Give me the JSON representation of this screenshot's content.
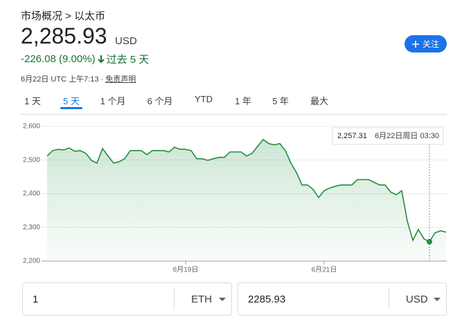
{
  "header": {
    "breadcrumb": "市场概况 > 以太币",
    "price": "2,285.93",
    "currency": "USD",
    "change": "-226.08 (9.00%)",
    "period": "过去 5 天",
    "follow": "关注",
    "timestamp": "6月22日 UTC 上午7:13 ·",
    "disclaimer": "免责声明"
  },
  "tabs": {
    "items": [
      "1 天",
      "5 天",
      "1 个月",
      "6 个月",
      "YTD",
      "1 年",
      "5 年",
      "最大"
    ],
    "selected": 1
  },
  "chart_data": {
    "type": "line",
    "x": [
      0,
      2,
      4,
      6,
      8,
      10,
      12,
      14,
      16,
      18,
      20,
      22,
      24,
      26,
      28,
      30,
      32,
      34,
      36,
      38,
      40,
      42,
      44,
      46,
      48,
      50,
      52,
      54,
      56,
      58,
      60,
      62,
      64,
      66,
      68,
      70,
      72,
      74,
      76,
      78,
      80,
      82,
      84,
      86,
      88,
      90,
      92,
      94,
      96,
      98,
      100,
      102,
      104,
      106,
      108,
      110,
      112,
      114,
      116,
      118,
      120,
      122,
      124,
      126,
      128,
      130,
      132,
      134,
      136,
      138,
      140,
      142,
      144
    ],
    "series": [
      {
        "name": "ETH",
        "color": "#1e8e3e",
        "values": [
          2512,
          2528,
          2532,
          2530,
          2536,
          2526,
          2528,
          2520,
          2499,
          2491,
          2534,
          2512,
          2491,
          2495,
          2504,
          2528,
          2528,
          2528,
          2516,
          2528,
          2528,
          2528,
          2524,
          2538,
          2532,
          2532,
          2528,
          2504,
          2504,
          2499,
          2504,
          2508,
          2508,
          2524,
          2524,
          2524,
          2512,
          2520,
          2541,
          2561,
          2549,
          2545,
          2549,
          2528,
          2491,
          2463,
          2426,
          2426,
          2413,
          2389,
          2409,
          2417,
          2422,
          2426,
          2426,
          2426,
          2442,
          2442,
          2442,
          2434,
          2426,
          2426,
          2405,
          2397,
          2409,
          2319,
          2262,
          2294,
          2266,
          2257.31,
          2284,
          2290,
          2285.93
        ]
      }
    ],
    "xlim": [
      0,
      144
    ],
    "xticks": [
      {
        "value": 50,
        "label": "6月19日"
      },
      {
        "value": 100,
        "label": "6月21日"
      }
    ],
    "ylim": [
      2200,
      2600
    ],
    "yticks": [
      {
        "value": 2200,
        "label": "2,200"
      },
      {
        "value": 2300,
        "label": "2,300"
      },
      {
        "value": 2400,
        "label": "2,400"
      },
      {
        "value": 2500,
        "label": "2,500"
      },
      {
        "value": 2600,
        "label": "2,600"
      }
    ],
    "grid": true,
    "tooltip": {
      "x": 138,
      "value": 2257.31,
      "label": "2,257.31",
      "time": "6月22日周日 03:30"
    }
  },
  "converter": {
    "amount": "1",
    "from": "ETH",
    "result": "2285.93",
    "to": "USD"
  }
}
